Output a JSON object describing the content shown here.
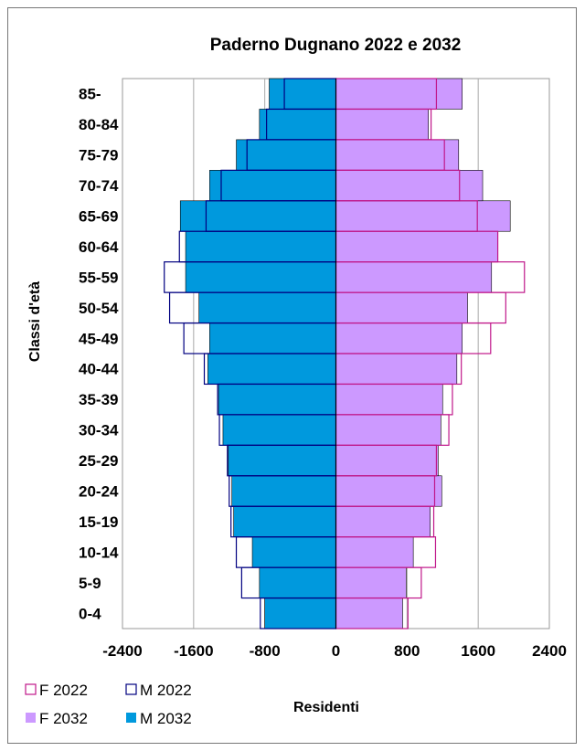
{
  "chart_data": {
    "type": "bar",
    "orientation": "horizontal-population-pyramid",
    "title": "Paderno Dugnano 2022 e 2032",
    "xlabel": "Residenti",
    "ylabel": "Classi d'età",
    "xlim": [
      -2400,
      2400
    ],
    "xticks": [
      "-2400",
      "-1600",
      "-800",
      "0",
      "800",
      "1600",
      "2400"
    ],
    "grid": "vertical",
    "categories": [
      "0-4",
      "5-9",
      "10-14",
      "15-19",
      "20-24",
      "25-29",
      "30-34",
      "35-39",
      "40-44",
      "45-49",
      "50-54",
      "55-59",
      "60-64",
      "65-69",
      "70-74",
      "75-79",
      "80-84",
      "85-"
    ],
    "series": [
      {
        "name": "F 2022",
        "style": "outline",
        "color": "#c0178a",
        "values": [
          810,
          960,
          1120,
          1100,
          1110,
          1130,
          1270,
          1310,
          1410,
          1740,
          1910,
          2120,
          1820,
          1590,
          1390,
          1220,
          1070,
          1130
        ]
      },
      {
        "name": "M 2022",
        "style": "outline",
        "color": "#000080",
        "values": [
          -850,
          -1060,
          -1120,
          -1180,
          -1200,
          -1220,
          -1310,
          -1330,
          -1480,
          -1710,
          -1870,
          -1930,
          -1760,
          -1460,
          -1290,
          -1000,
          -780,
          -580
        ]
      },
      {
        "name": "F 2032",
        "style": "filled",
        "color": "#cc99ff",
        "values": [
          750,
          790,
          870,
          1060,
          1190,
          1150,
          1180,
          1200,
          1360,
          1420,
          1480,
          1750,
          1820,
          1960,
          1650,
          1380,
          1040,
          1420
        ]
      },
      {
        "name": "M 2032",
        "style": "filled",
        "color": "#0099dd",
        "values": [
          -800,
          -860,
          -940,
          -1150,
          -1170,
          -1210,
          -1270,
          -1320,
          -1440,
          -1420,
          -1540,
          -1690,
          -1690,
          -1750,
          -1420,
          -1120,
          -860,
          -750
        ]
      }
    ],
    "legend_position": "bottom-left"
  }
}
